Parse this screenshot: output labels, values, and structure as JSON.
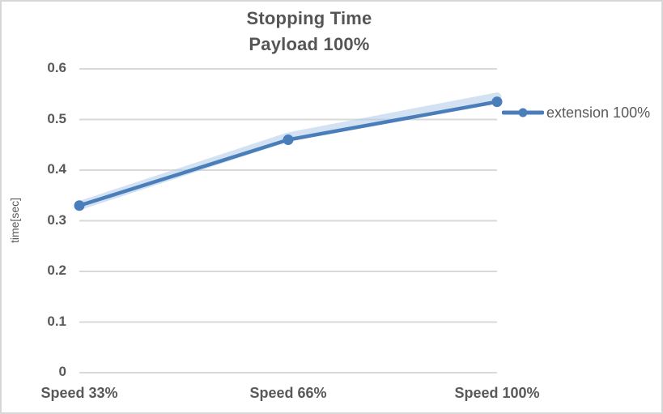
{
  "title": {
    "line1": "Stopping Time",
    "line2": "Payload 100%"
  },
  "chart_data": {
    "type": "line",
    "title": "Stopping Time Payload 100%",
    "categories": [
      "Speed 33%",
      "Speed 66%",
      "Speed 100%"
    ],
    "series": [
      {
        "name": "extension 100%",
        "values": [
          0.33,
          0.46,
          0.535
        ],
        "color": "#4a7ebb",
        "marker": "circle",
        "glow": true
      }
    ],
    "xlabel": "",
    "ylabel": "time[sec]",
    "ylim": [
      0,
      0.6
    ],
    "ytick_step": 0.1,
    "yticks": [
      "0",
      "0.1",
      "0.2",
      "0.3",
      "0.4",
      "0.5",
      "0.6"
    ],
    "grid": true,
    "legend_position": "right",
    "colors": {
      "line": "#4a7ebb",
      "glow": "#aecae8",
      "gridline": "#d9d9d9",
      "text": "#595959",
      "title": "#555555",
      "background": "#ffffff",
      "frame_border": "#d7d7d7"
    }
  }
}
